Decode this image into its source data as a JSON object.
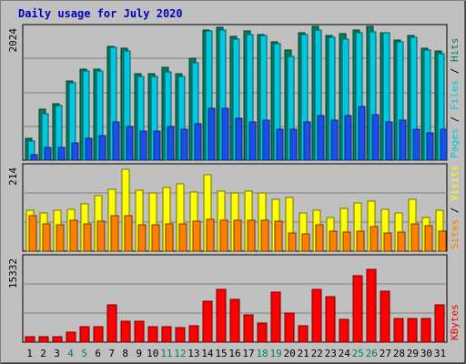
{
  "chart_data": {
    "type": "bar",
    "title": "Daily usage for July 2020",
    "categories": [
      "1",
      "2",
      "3",
      "4",
      "5",
      "6",
      "7",
      "8",
      "9",
      "10",
      "11",
      "12",
      "13",
      "14",
      "15",
      "16",
      "17",
      "18",
      "19",
      "20",
      "21",
      "22",
      "23",
      "24",
      "25",
      "26",
      "27",
      "28",
      "29",
      "30",
      "31"
    ],
    "weekend_days": [
      "4",
      "5",
      "11",
      "12",
      "18",
      "19",
      "25",
      "26"
    ],
    "panels": [
      {
        "name": "hits-files-pages",
        "axis_label": "2024",
        "ylim": [
          0,
          2024
        ],
        "right_labels": [
          "Pages",
          "Files",
          "Hits"
        ],
        "series": [
          {
            "name": "Hits",
            "color": "#00805c",
            "values": [
              340,
              780,
              870,
              1220,
              1400,
              1390,
              1750,
              1710,
              1320,
              1320,
              1420,
              1320,
              1560,
              2000,
              2040,
              1900,
              1980,
              1930,
              1820,
              1690,
              1960,
              2050,
              1910,
              1940,
              2000,
              2050,
              1960,
              1840,
              1910,
              1710,
              1670
            ]
          },
          {
            "name": "Files",
            "color": "#00c8e0",
            "values": [
              290,
              710,
              840,
              1190,
              1370,
              1370,
              1730,
              1680,
              1290,
              1290,
              1360,
              1280,
              1500,
              1980,
              2000,
              1850,
              1930,
              1910,
              1780,
              1590,
              1920,
              1990,
              1890,
              1860,
              1960,
              1970,
              1950,
              1810,
              1880,
              1690,
              1640
            ]
          },
          {
            "name": "Pages",
            "color": "#1850f0",
            "values": [
              80,
              190,
              200,
              260,
              330,
              370,
              590,
              520,
              440,
              450,
              520,
              470,
              560,
              790,
              800,
              640,
              590,
              620,
              480,
              470,
              590,
              690,
              620,
              690,
              830,
              700,
              580,
              610,
              470,
              420,
              480
            ]
          }
        ]
      },
      {
        "name": "visits-sites",
        "axis_label": "214",
        "ylim": [
          0,
          214
        ],
        "right_labels": [
          "Sites",
          "Visits"
        ],
        "series": [
          {
            "name": "Visits",
            "color": "#ffff00",
            "values": [
              104,
              98,
              104,
              108,
              120,
              142,
              158,
              210,
              155,
              148,
              162,
              172,
              152,
              196,
              154,
              150,
              154,
              148,
              132,
              137,
              98,
              104,
              87,
              110,
              124,
              128,
              108,
              98,
              132,
              87,
              104
            ]
          },
          {
            "name": "Sites",
            "color": "#ff8000",
            "values": [
              90,
              70,
              68,
              80,
              70,
              76,
              90,
              90,
              68,
              68,
              70,
              70,
              76,
              82,
              80,
              80,
              80,
              80,
              76,
              46,
              44,
              67,
              52,
              48,
              52,
              62,
              46,
              49,
              70,
              64,
              52
            ]
          }
        ]
      },
      {
        "name": "kbytes",
        "axis_label": "15332",
        "ylim": [
          0,
          15332
        ],
        "right_labels": [
          "KBytes"
        ],
        "series": [
          {
            "name": "KBytes",
            "color": "#ff0000",
            "values": [
              1000,
              1000,
              1000,
              1800,
              2800,
              2800,
              6800,
              3800,
              3800,
              2800,
              2800,
              2600,
              3000,
              7500,
              9700,
              7800,
              5000,
              3500,
              9200,
              5400,
              3000,
              9700,
              8400,
              4100,
              12100,
              13400,
              9400,
              4300,
              4400,
              4300,
              6800
            ]
          }
        ]
      }
    ],
    "colors": {
      "title": "#0000c0",
      "weekday_label": "#000000",
      "weekend_label": "#00805c",
      "pages_label": "#00c8e0",
      "files_label": "#00c8e0",
      "hits_label": "#00805c",
      "sites_label": "#ff8000",
      "visits_label": "#ffff00",
      "kbytes_label": "#ff0000"
    }
  }
}
